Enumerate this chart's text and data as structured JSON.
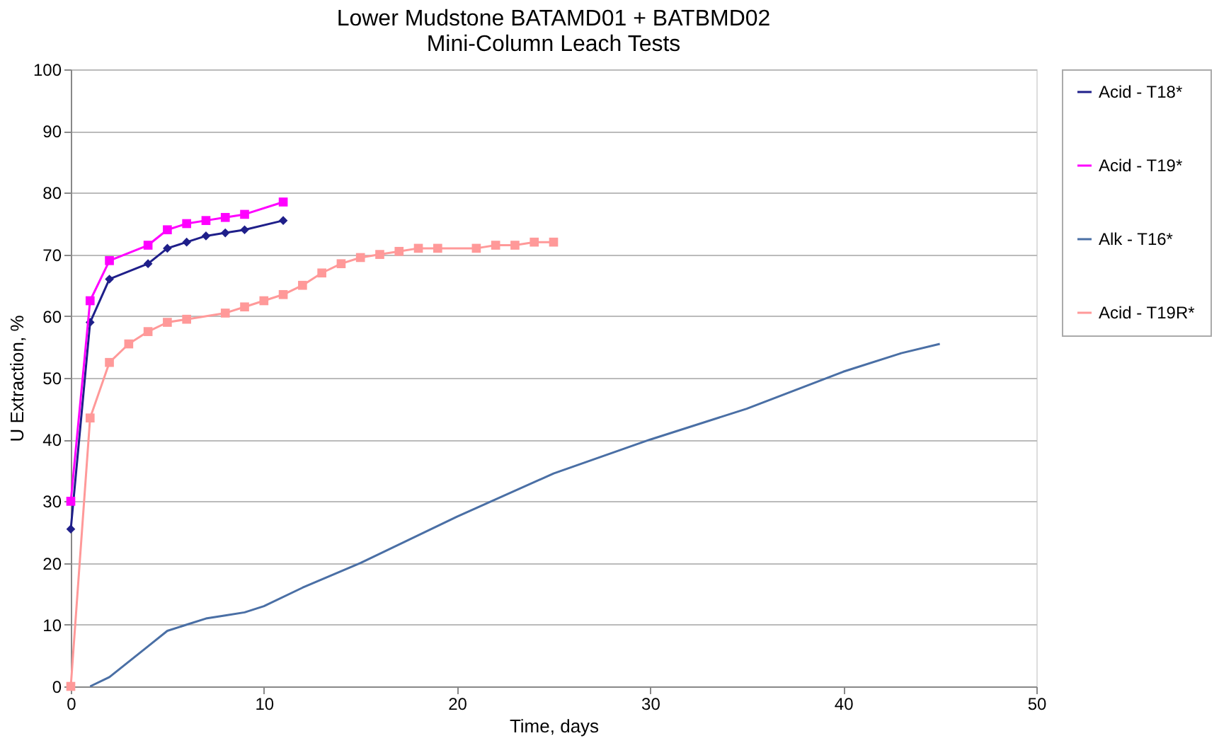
{
  "chart_data": {
    "type": "line",
    "title": [
      "Lower Mudstone BATAMD01 + BATBMD02",
      "Mini-Column Leach Tests"
    ],
    "xlabel": "Time, days",
    "ylabel": "U Extraction, %",
    "xlim": [
      0,
      50
    ],
    "xticks": [
      0,
      10,
      20,
      30,
      40,
      50
    ],
    "ylim": [
      0,
      100
    ],
    "yticks": [
      0,
      10,
      20,
      30,
      40,
      50,
      60,
      70,
      80,
      90,
      100
    ],
    "grid": "y",
    "legend": "right",
    "series": [
      {
        "name": "Acid - T18*",
        "color": "#1f1f8a",
        "marker": "diamond",
        "x": [
          0,
          1,
          2,
          4,
          5,
          6,
          7,
          8,
          9,
          11
        ],
        "values": [
          25.5,
          59,
          66,
          68.5,
          71,
          72,
          73,
          73.5,
          74,
          75.5
        ]
      },
      {
        "name": "Acid - T19*",
        "color": "#ff00ff",
        "marker": "square",
        "x": [
          0,
          1,
          2,
          4,
          5,
          6,
          7,
          8,
          9,
          11
        ],
        "values": [
          30,
          62.5,
          69,
          71.5,
          74,
          75,
          75.5,
          76,
          76.5,
          78.5
        ]
      },
      {
        "name": "Alk - T16*",
        "color": "#4a6fa5",
        "marker": "none",
        "x": [
          1,
          2,
          3,
          4,
          5,
          6,
          7,
          8,
          9,
          10,
          12,
          15,
          20,
          25,
          30,
          35,
          40,
          43,
          45
        ],
        "values": [
          0,
          1.5,
          4,
          6.5,
          9,
          10,
          11,
          11.5,
          12,
          13,
          16,
          20,
          27.5,
          34.5,
          40,
          45,
          51,
          54,
          55.5
        ]
      },
      {
        "name": "Acid - T19R*",
        "color": "#ff9999",
        "marker": "square",
        "x": [
          0,
          1,
          2,
          3,
          4,
          5,
          6,
          8,
          9,
          10,
          11,
          12,
          13,
          14,
          15,
          16,
          17,
          18,
          19,
          21,
          22,
          23,
          24,
          25
        ],
        "values": [
          0,
          43.5,
          52.5,
          55.5,
          57.5,
          59,
          59.5,
          60.5,
          61.5,
          62.5,
          63.5,
          65,
          67,
          68.5,
          69.5,
          70,
          70.5,
          71,
          71,
          71,
          71.5,
          71.5,
          72,
          72
        ]
      }
    ]
  }
}
